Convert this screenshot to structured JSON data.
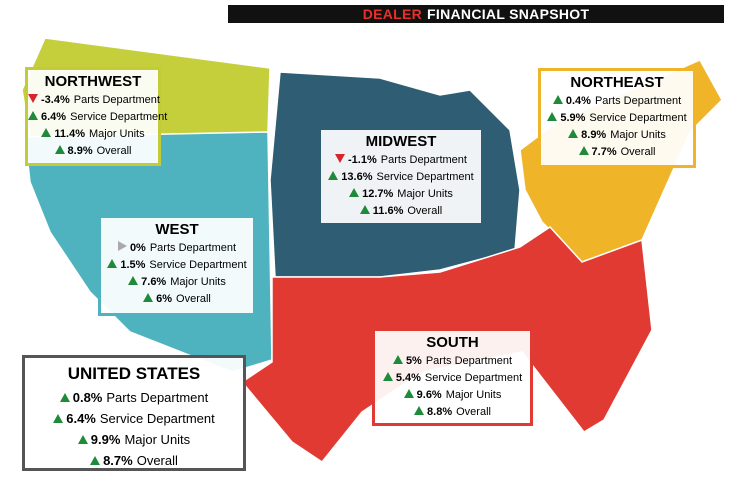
{
  "title": {
    "highlight": "DEALER",
    "rest": "FINANCIAL SNAPSHOT"
  },
  "regions": [
    {
      "name": "NORTHWEST",
      "rows": [
        {
          "trend": "down",
          "value": "-3.4%",
          "label": "Parts Department"
        },
        {
          "trend": "up",
          "value": "6.4%",
          "label": "Service Department"
        },
        {
          "trend": "up",
          "value": "11.4%",
          "label": "Major Units"
        },
        {
          "trend": "up",
          "value": "8.9%",
          "label": "Overall"
        }
      ]
    },
    {
      "name": "MIDWEST",
      "rows": [
        {
          "trend": "down",
          "value": "-1.1%",
          "label": "Parts Department"
        },
        {
          "trend": "up",
          "value": "13.6%",
          "label": "Service Department"
        },
        {
          "trend": "up",
          "value": "12.7%",
          "label": "Major Units"
        },
        {
          "trend": "up",
          "value": "11.6%",
          "label": "Overall"
        }
      ]
    },
    {
      "name": "NORTHEAST",
      "rows": [
        {
          "trend": "up",
          "value": "0.4%",
          "label": "Parts Department"
        },
        {
          "trend": "up",
          "value": "5.9%",
          "label": "Service Department"
        },
        {
          "trend": "up",
          "value": "8.9%",
          "label": "Major Units"
        },
        {
          "trend": "up",
          "value": "7.7%",
          "label": "Overall"
        }
      ]
    },
    {
      "name": "WEST",
      "rows": [
        {
          "trend": "flat",
          "value": "0%",
          "label": "Parts Department"
        },
        {
          "trend": "up",
          "value": "1.5%",
          "label": "Service Department"
        },
        {
          "trend": "up",
          "value": "7.6%",
          "label": "Major Units"
        },
        {
          "trend": "up",
          "value": "6%",
          "label": "Overall"
        }
      ]
    },
    {
      "name": "SOUTH",
      "rows": [
        {
          "trend": "up",
          "value": "5%",
          "label": "Parts Department"
        },
        {
          "trend": "up",
          "value": "5.4%",
          "label": "Service Department"
        },
        {
          "trend": "up",
          "value": "9.6%",
          "label": "Major Units"
        },
        {
          "trend": "up",
          "value": "8.8%",
          "label": "Overall"
        }
      ]
    },
    {
      "name": "UNITED STATES",
      "rows": [
        {
          "trend": "up",
          "value": "0.8%",
          "label": "Parts Department"
        },
        {
          "trend": "up",
          "value": "6.4%",
          "label": "Service Department"
        },
        {
          "trend": "up",
          "value": "9.9%",
          "label": "Major Units"
        },
        {
          "trend": "up",
          "value": "8.7%",
          "label": "Overall"
        }
      ]
    }
  ]
}
